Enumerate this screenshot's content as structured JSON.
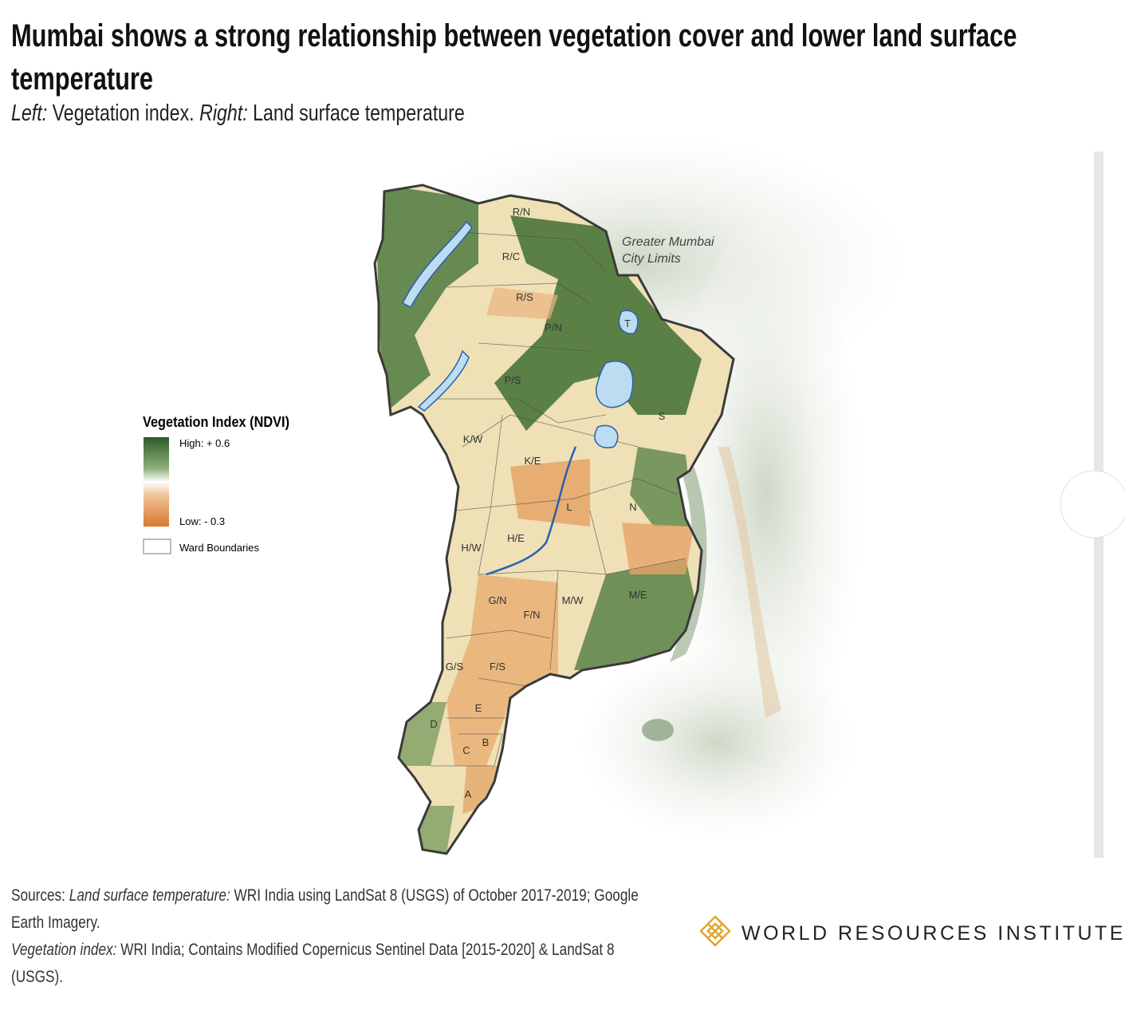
{
  "header": {
    "title": "Mumbai shows a strong relationship between vegetation cover and lower land surface temperature",
    "subtitle": {
      "left_label": "Left:",
      "left_text": "Vegetation index.",
      "right_label": "Right:",
      "right_text": "Land surface temperature"
    }
  },
  "legend": {
    "title": "Vegetation Index (NDVI)",
    "high": "High: + 0.6",
    "low": "Low: - 0.3",
    "boundaries": "Ward Boundaries"
  },
  "map": {
    "annotation": [
      "Greater Mumbai",
      "City Limits"
    ],
    "wards": [
      "R/N",
      "R/C",
      "R/S",
      "P/N",
      "T",
      "P/S",
      "S",
      "K/W",
      "K/E",
      "L",
      "N",
      "H/W",
      "H/E",
      "G/N",
      "F/N",
      "M/W",
      "M/E",
      "G/S",
      "F/S",
      "E",
      "D",
      "C",
      "B",
      "A"
    ]
  },
  "sources": {
    "label": "Sources:",
    "lst_label": "Land surface temperature:",
    "lst_text": "WRI India using LandSat 8 (USGS) of October 2017-2019; Google Earth Imagery.",
    "veg_label": "Vegetation index:",
    "veg_text": "WRI India; Contains Modified Copernicus Sentinel Data [2015-2020] & LandSat 8 (USGS)."
  },
  "logo": {
    "text": "WORLD RESOURCES INSTITUTE"
  }
}
